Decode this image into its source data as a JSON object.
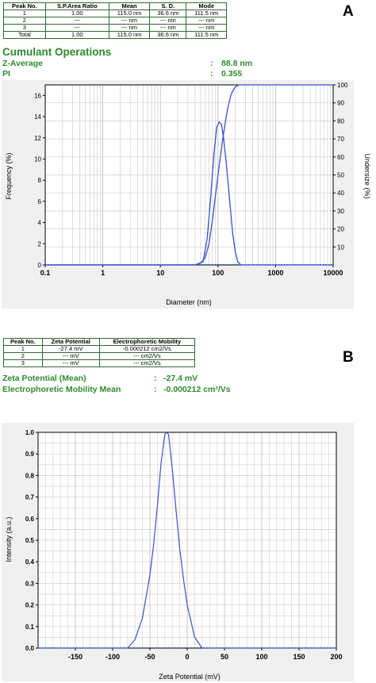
{
  "panel_a": {
    "letter": "A",
    "table": {
      "headers": [
        "Peak No.",
        "S.P.Area Ratio",
        "Mean",
        "S. D.",
        "Mode"
      ],
      "rows": [
        [
          "1",
          "1.00",
          "115.0 nm",
          "36.6 nm",
          "111.5 nm"
        ],
        [
          "2",
          "---",
          "--- nm",
          "--- nm",
          "--- nm"
        ],
        [
          "3",
          "---",
          "--- nm",
          "--- nm",
          "--- nm"
        ],
        [
          "Total",
          "1.00",
          "115.0 nm",
          "36.6 nm",
          "111.5 nm"
        ]
      ]
    },
    "section_title": "Cumulant Operations",
    "stats": [
      {
        "label": "Z-Average",
        "sep": ":",
        "value": "88.8 nm"
      },
      {
        "label": "PI",
        "sep": ":",
        "value": "0.355"
      }
    ]
  },
  "panel_b": {
    "letter": "B",
    "table": {
      "headers": [
        "Peak No.",
        "Zeta Potential",
        "Electrophoretic Mobility"
      ],
      "rows": [
        [
          "1",
          "-27.4 mV",
          "-0.000212 cm2/Vs"
        ],
        [
          "2",
          "--- mV",
          "--- cm2/Vs"
        ],
        [
          "3",
          "--- mV",
          "--- cm2/Vs"
        ]
      ]
    },
    "stats": [
      {
        "label": "Zeta Potential (Mean)",
        "sep": ":",
        "value": "-27.4 mV"
      },
      {
        "label": "Electrophoretic Mobility Mean",
        "sep": ":",
        "value": "-0.000212 cm²/Vs"
      }
    ]
  },
  "chart_data": [
    {
      "type": "line",
      "xlabel": "Diameter (nm)",
      "ylabel": "Frequency (%)",
      "y2label": "Undersize (%)",
      "xscale": "log",
      "xlim": [
        0.1,
        10000
      ],
      "ylim": [
        0,
        17
      ],
      "y2lim": [
        0,
        100
      ],
      "xticks": [
        "0.1",
        "1",
        "10",
        "100",
        "1000",
        "10000"
      ],
      "yticks": [
        "0",
        "2",
        "4",
        "6",
        "8",
        "10",
        "12",
        "14",
        "16"
      ],
      "y2ticks": [
        "10",
        "20",
        "30",
        "40",
        "50",
        "60",
        "70",
        "80",
        "90",
        "100"
      ],
      "grid": true,
      "series": [
        {
          "axis": "left",
          "x": [
            0.1,
            40,
            55,
            65,
            75,
            85,
            95,
            105,
            115,
            125,
            140,
            160,
            180,
            200,
            220,
            250,
            10000
          ],
          "y": [
            0,
            0,
            0.3,
            2.5,
            6.5,
            10.5,
            13.0,
            13.5,
            13.3,
            12.0,
            9.5,
            6.0,
            3.0,
            1.2,
            0.3,
            0,
            0
          ]
        },
        {
          "axis": "right",
          "x": [
            0.1,
            40,
            50,
            60,
            70,
            80,
            90,
            100,
            110,
            120,
            135,
            150,
            170,
            200,
            230,
            260,
            10000
          ],
          "y": [
            0,
            0,
            1,
            4,
            12,
            25,
            38,
            50,
            60,
            69,
            80,
            88,
            95,
            99,
            100,
            100,
            100
          ]
        }
      ],
      "color": "#3a4fd0"
    },
    {
      "type": "line",
      "xlabel": "Zeta Potential (mV)",
      "ylabel": "Intensity (a.u.)",
      "xlim": [
        -200,
        200
      ],
      "ylim": [
        0,
        1
      ],
      "xticks": [
        "-150",
        "-100",
        "-50",
        "0",
        "50",
        "100",
        "150",
        "200"
      ],
      "yticks": [
        "0.0",
        "0.1",
        "0.2",
        "0.3",
        "0.4",
        "0.5",
        "0.6",
        "0.7",
        "0.8",
        "0.9",
        "1.0"
      ],
      "grid": true,
      "series": [
        {
          "x": [
            -200,
            -80,
            -70,
            -60,
            -50,
            -45,
            -40,
            -35,
            -30,
            -27.4,
            -25,
            -20,
            -15,
            -10,
            -5,
            0,
            10,
            20,
            200
          ],
          "y": [
            0,
            0,
            0.04,
            0.14,
            0.34,
            0.48,
            0.66,
            0.86,
            0.99,
            1.0,
            0.99,
            0.83,
            0.64,
            0.46,
            0.32,
            0.2,
            0.05,
            0,
            0
          ]
        }
      ],
      "color": "#3a4fd0"
    }
  ]
}
